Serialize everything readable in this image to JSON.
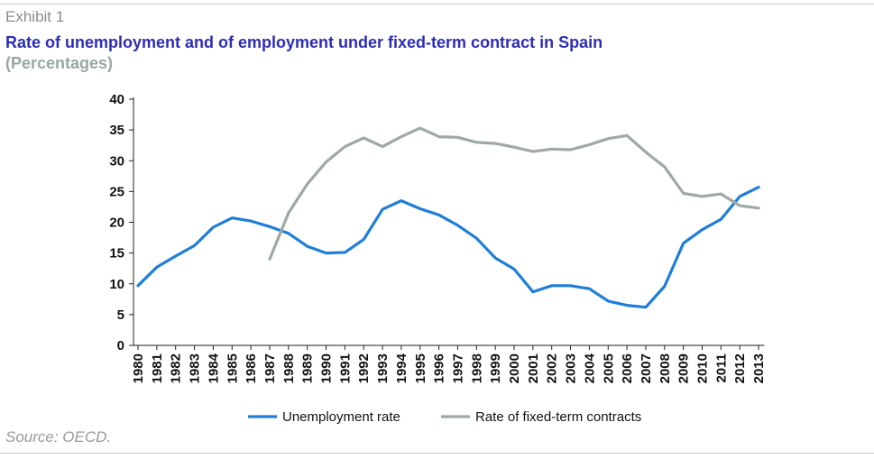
{
  "header": {
    "exhibit": "Exhibit 1",
    "title": "Rate of unemployment and of employment under fixed-term contract in Spain",
    "subtitle": "(Percentages)"
  },
  "footer": {
    "source": "Source: OECD."
  },
  "colors": {
    "unemployment": "#1f7fd8",
    "fixed_term": "#9ea9a6",
    "axis": "#222222"
  },
  "chart_data": {
    "type": "line",
    "title": "Rate of unemployment and of employment under fixed-term contract in Spain",
    "subtitle": "(Percentages)",
    "xlabel": "",
    "ylabel": "",
    "ylim": [
      0,
      40
    ],
    "yticks": [
      "0",
      "5",
      "10",
      "15",
      "20",
      "25",
      "30",
      "35",
      "40"
    ],
    "categories": [
      "1980",
      "1981",
      "1982",
      "1983",
      "1984",
      "1985",
      "1986",
      "1987",
      "1988",
      "1989",
      "1990",
      "1991",
      "1992",
      "1993",
      "1994",
      "1995",
      "1996",
      "1997",
      "1998",
      "1999",
      "2000",
      "2001",
      "2002",
      "2003",
      "2004",
      "2005",
      "2006",
      "2007",
      "2008",
      "2009",
      "2010",
      "2011",
      "2012",
      "2013"
    ],
    "grid": false,
    "legend_position": "bottom",
    "series": [
      {
        "name": "Unemployment rate",
        "values": [
          9.7,
          12.7,
          14.5,
          16.2,
          19.2,
          20.7,
          20.2,
          19.3,
          18.2,
          16.1,
          15.0,
          15.1,
          17.2,
          22.1,
          23.5,
          22.2,
          21.2,
          19.5,
          17.4,
          14.2,
          12.4,
          8.7,
          9.7,
          9.7,
          9.2,
          7.2,
          6.5,
          6.2,
          9.6,
          16.6,
          18.8,
          20.5,
          24.2,
          25.7
        ]
      },
      {
        "name": "Rate of fixed-term contracts",
        "values": [
          null,
          null,
          null,
          null,
          null,
          null,
          null,
          14.0,
          21.5,
          26.2,
          29.8,
          32.3,
          33.7,
          32.3,
          33.9,
          35.3,
          33.9,
          33.8,
          33.0,
          32.8,
          32.2,
          31.5,
          31.9,
          31.8,
          32.6,
          33.6,
          34.1,
          31.4,
          29.0,
          24.7,
          24.2,
          24.6,
          22.7,
          22.3
        ]
      }
    ]
  }
}
